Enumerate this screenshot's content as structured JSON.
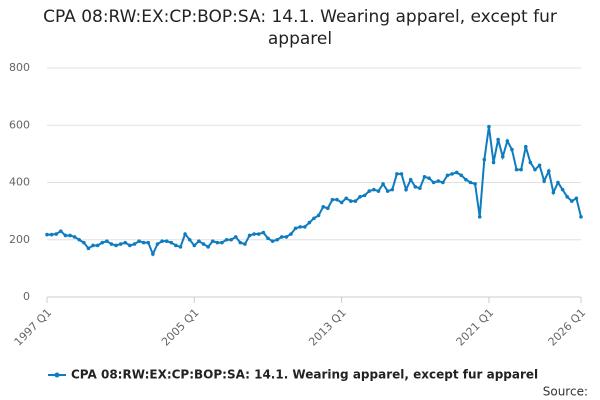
{
  "chart_data": {
    "type": "line",
    "title": "CPA 08:RW:EX:CP:BOP:SA: 14.1. Wearing apparel, except fur apparel",
    "source": "Source:",
    "categories": [
      "1997 Q1",
      null,
      null,
      null,
      null,
      null,
      null,
      null,
      null,
      null,
      null,
      null,
      null,
      null,
      null,
      null,
      null,
      null,
      null,
      null,
      null,
      null,
      null,
      null,
      null,
      null,
      null,
      null,
      null,
      null,
      null,
      null,
      "2005 Q1",
      null,
      null,
      null,
      null,
      null,
      null,
      null,
      null,
      null,
      null,
      null,
      null,
      null,
      null,
      null,
      null,
      null,
      null,
      null,
      null,
      null,
      null,
      null,
      null,
      null,
      null,
      null,
      null,
      null,
      null,
      null,
      "2013 Q1",
      null,
      null,
      null,
      null,
      null,
      null,
      null,
      null,
      null,
      null,
      null,
      null,
      null,
      null,
      null,
      null,
      null,
      null,
      null,
      null,
      null,
      null,
      null,
      null,
      null,
      null,
      null,
      null,
      null,
      null,
      null,
      "2021 Q1",
      null,
      null,
      null,
      null,
      null,
      null,
      null,
      null,
      null,
      null,
      null,
      null,
      null,
      null,
      null,
      null,
      null,
      null,
      null,
      "2026 Q1"
    ],
    "series": [
      {
        "name": "CPA 08:RW:EX:CP:BOP:SA: 14.1. Wearing apparel, except fur apparel",
        "color": "#0f7cbf",
        "values": [
          218,
          218,
          220,
          230,
          215,
          215,
          210,
          200,
          190,
          170,
          180,
          180,
          190,
          195,
          185,
          180,
          185,
          190,
          180,
          185,
          195,
          190,
          190,
          150,
          185,
          195,
          195,
          190,
          180,
          175,
          220,
          200,
          180,
          195,
          185,
          175,
          195,
          190,
          190,
          200,
          200,
          210,
          190,
          185,
          215,
          220,
          220,
          225,
          205,
          195,
          200,
          210,
          210,
          220,
          240,
          245,
          245,
          260,
          275,
          285,
          315,
          310,
          340,
          340,
          330,
          345,
          335,
          335,
          350,
          355,
          370,
          375,
          370,
          395,
          370,
          375,
          430,
          430,
          375,
          410,
          385,
          380,
          420,
          415,
          400,
          405,
          400,
          425,
          430,
          435,
          425,
          410,
          400,
          395,
          280,
          480,
          595,
          470,
          550,
          490,
          545,
          515,
          445,
          445,
          525,
          470,
          445,
          460,
          405,
          440,
          365,
          400,
          375,
          350,
          335,
          345,
          280
        ]
      }
    ],
    "ylim": [
      0,
      800
    ],
    "yticks": [
      0,
      200,
      400,
      600,
      800
    ],
    "grid": true
  }
}
